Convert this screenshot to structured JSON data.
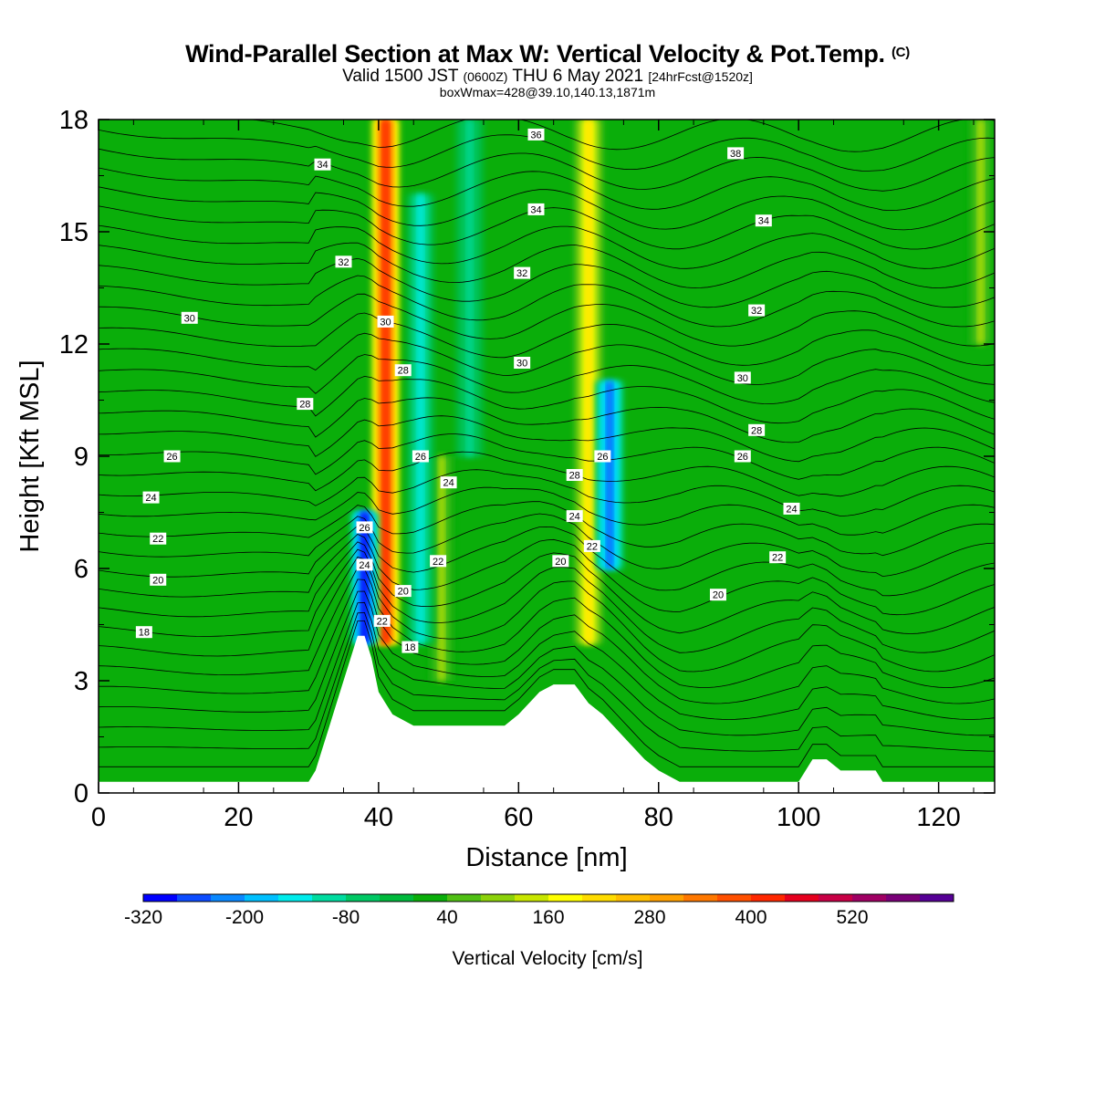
{
  "header": {
    "title": "Wind-Parallel Section at Max W: Vertical Velocity & Pot.Temp.",
    "copyright": "(C)",
    "valid_prefix": "Valid 1500 JST",
    "valid_utc": "(0600Z)",
    "valid_date": "THU 6 May 2021",
    "forecast": "[24hrFcst@1520z]",
    "box_info": "boxWmax=428@39.10,140.13,1871m"
  },
  "chart_data": {
    "type": "heatmap",
    "xlabel": "Distance [nm]",
    "ylabel": "Height [Kft MSL]",
    "xlim": [
      0,
      128
    ],
    "ylim": [
      0,
      18
    ],
    "xticks": [
      "0",
      "20",
      "40",
      "60",
      "80",
      "100",
      "120"
    ],
    "yticks": [
      "0",
      "3",
      "6",
      "9",
      "12",
      "15",
      "18"
    ],
    "background_fill_color": "#0aae0a",
    "updraft_bands": [
      {
        "x_center": 41,
        "peak_cm_s": 428,
        "y_range": [
          4,
          18
        ]
      },
      {
        "x_center": 70,
        "peak_cm_s": 220,
        "y_range": [
          4,
          18
        ]
      },
      {
        "x_center": 49,
        "peak_cm_s": 120,
        "y_range": [
          3,
          9
        ]
      },
      {
        "x_center": 126,
        "peak_cm_s": 120,
        "y_range": [
          12,
          18
        ]
      }
    ],
    "downdraft_bands": [
      {
        "x_center": 38,
        "min_cm_s": -320,
        "y_range": [
          4,
          7.5
        ]
      },
      {
        "x_center": 46,
        "min_cm_s": -160,
        "y_range": [
          4,
          16
        ]
      },
      {
        "x_center": 73,
        "min_cm_s": -260,
        "y_range": [
          6,
          11
        ]
      },
      {
        "x_center": 53,
        "min_cm_s": -120,
        "y_range": [
          9,
          18
        ]
      }
    ],
    "terrain_profile": [
      [
        0,
        0.3
      ],
      [
        30,
        0.3
      ],
      [
        31,
        0.6
      ],
      [
        32,
        1.2
      ],
      [
        33,
        1.8
      ],
      [
        34,
        2.4
      ],
      [
        35,
        3.0
      ],
      [
        36,
        3.6
      ],
      [
        37,
        4.2
      ],
      [
        38,
        4.2
      ],
      [
        39,
        3.6
      ],
      [
        40,
        2.7
      ],
      [
        41,
        2.4
      ],
      [
        42,
        2.1
      ],
      [
        45,
        1.8
      ],
      [
        58,
        1.8
      ],
      [
        60,
        2.1
      ],
      [
        63,
        2.7
      ],
      [
        65,
        2.9
      ],
      [
        68,
        2.9
      ],
      [
        70,
        2.4
      ],
      [
        72,
        2.1
      ],
      [
        75,
        1.5
      ],
      [
        78,
        0.9
      ],
      [
        80,
        0.6
      ],
      [
        83,
        0.3
      ],
      [
        100,
        0.3
      ],
      [
        102,
        0.9
      ],
      [
        104,
        0.9
      ],
      [
        106,
        0.6
      ],
      [
        111,
        0.6
      ],
      [
        112,
        0.3
      ],
      [
        128,
        0.3
      ]
    ],
    "theta_contours": {
      "unit": "deg C",
      "levels": [
        18,
        20,
        22,
        24,
        26,
        28,
        30,
        32,
        34,
        36,
        38
      ],
      "labels": [
        {
          "text": "18",
          "x": 6.5,
          "y": 4.3
        },
        {
          "text": "20",
          "x": 8.5,
          "y": 5.7
        },
        {
          "text": "22",
          "x": 8.5,
          "y": 6.8
        },
        {
          "text": "24",
          "x": 7.5,
          "y": 7.9
        },
        {
          "text": "26",
          "x": 10.5,
          "y": 9.0
        },
        {
          "text": "28",
          "x": 29.5,
          "y": 10.4
        },
        {
          "text": "30",
          "x": 13,
          "y": 12.7
        },
        {
          "text": "32",
          "x": 35,
          "y": 14.2
        },
        {
          "text": "34",
          "x": 32,
          "y": 16.8
        },
        {
          "text": "36",
          "x": 62.5,
          "y": 17.6
        },
        {
          "text": "34",
          "x": 62.5,
          "y": 15.6
        },
        {
          "text": "32",
          "x": 60.5,
          "y": 13.9
        },
        {
          "text": "30",
          "x": 60.5,
          "y": 11.5
        },
        {
          "text": "28",
          "x": 68,
          "y": 8.5
        },
        {
          "text": "24",
          "x": 68,
          "y": 7.4
        },
        {
          "text": "22",
          "x": 70.5,
          "y": 6.6
        },
        {
          "text": "20",
          "x": 66,
          "y": 6.2
        },
        {
          "text": "26",
          "x": 72,
          "y": 9.0
        },
        {
          "text": "30",
          "x": 41,
          "y": 12.6
        },
        {
          "text": "28",
          "x": 43.5,
          "y": 11.3
        },
        {
          "text": "26",
          "x": 46,
          "y": 9.0
        },
        {
          "text": "24",
          "x": 50,
          "y": 8.3
        },
        {
          "text": "22",
          "x": 48.5,
          "y": 6.2
        },
        {
          "text": "26",
          "x": 38,
          "y": 7.1
        },
        {
          "text": "24",
          "x": 38,
          "y": 6.1
        },
        {
          "text": "22",
          "x": 40.5,
          "y": 4.6
        },
        {
          "text": "20",
          "x": 43.5,
          "y": 5.4
        },
        {
          "text": "18",
          "x": 44.5,
          "y": 3.9
        },
        {
          "text": "38",
          "x": 91,
          "y": 17.1
        },
        {
          "text": "34",
          "x": 95,
          "y": 15.3
        },
        {
          "text": "32",
          "x": 94,
          "y": 12.9
        },
        {
          "text": "30",
          "x": 92,
          "y": 11.1
        },
        {
          "text": "28",
          "x": 94,
          "y": 9.7
        },
        {
          "text": "26",
          "x": 92,
          "y": 9.0
        },
        {
          "text": "24",
          "x": 99,
          "y": 7.6
        },
        {
          "text": "22",
          "x": 97,
          "y": 6.3
        },
        {
          "text": "20",
          "x": 88.5,
          "y": 5.3
        }
      ]
    }
  },
  "colorbar": {
    "title": "Vertical Velocity [cm/s]",
    "tick_labels": [
      "-320",
      "-200",
      "-80",
      "40",
      "160",
      "280",
      "400",
      "520"
    ],
    "colors": [
      "#0000ff",
      "#0c4cff",
      "#0a88ff",
      "#00c0ff",
      "#00ecec",
      "#00dca0",
      "#00c864",
      "#00b93c",
      "#0aae0a",
      "#50c014",
      "#8cd20a",
      "#c8e600",
      "#ffff00",
      "#ffdc00",
      "#ffbe00",
      "#ffa000",
      "#ff7800",
      "#ff5000",
      "#ff2800",
      "#e6001e",
      "#c80046",
      "#a00064",
      "#7a0078",
      "#560096"
    ]
  }
}
